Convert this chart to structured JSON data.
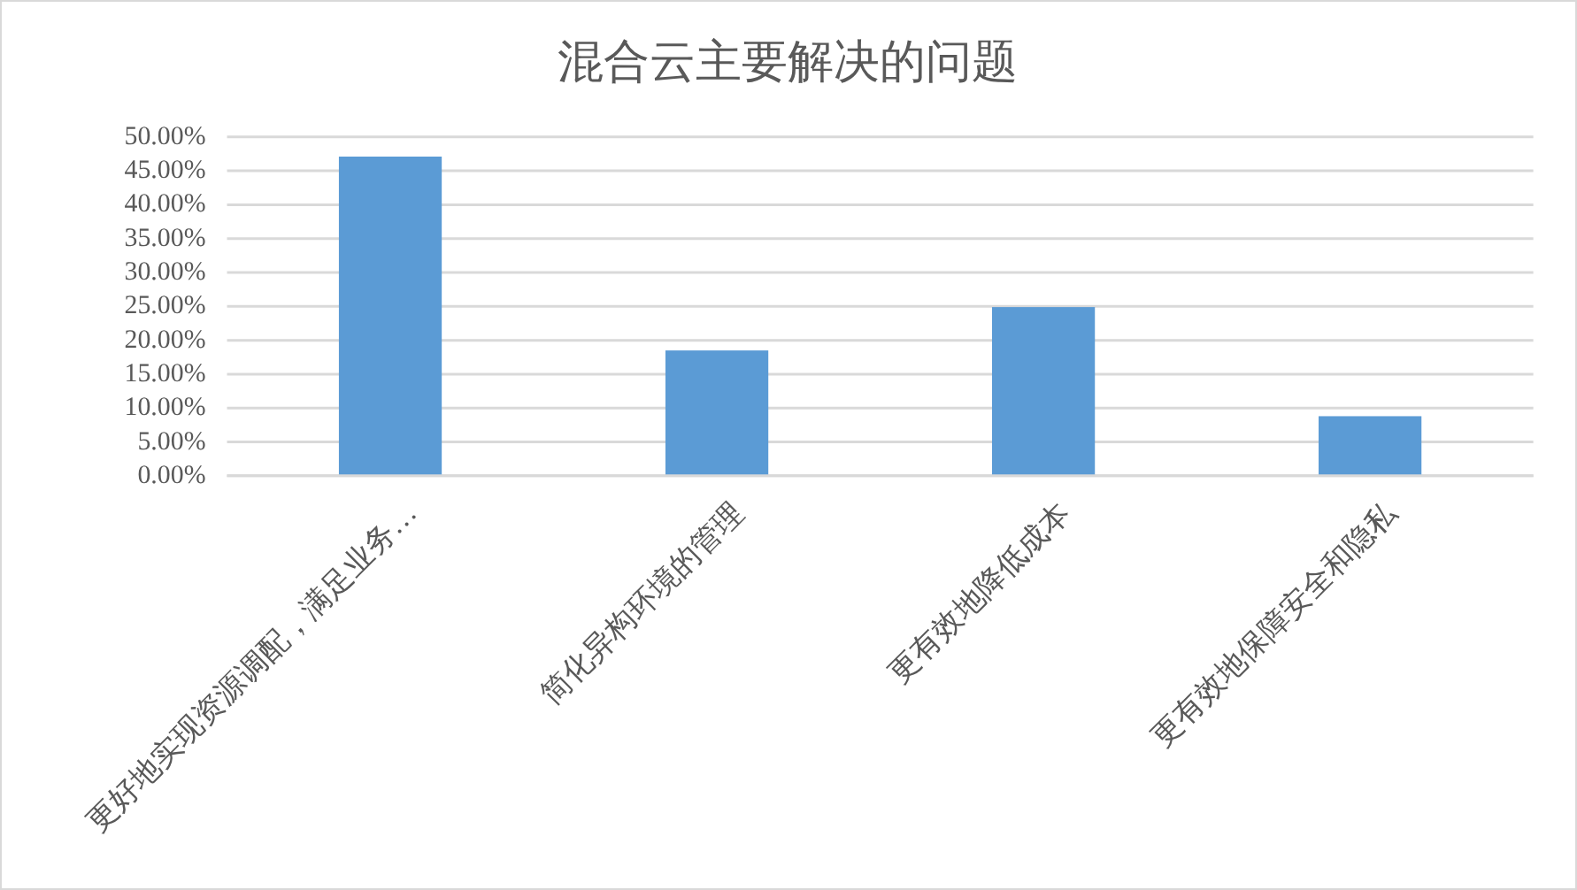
{
  "chart_data": {
    "type": "bar",
    "title": "混合云主要解决的问题",
    "categories": [
      "更好地实现资源调配，满足业务…",
      "简化异构环境的管理",
      "更有效地降低成本",
      "更有效地保障安全和隐私"
    ],
    "values": [
      47.1,
      18.5,
      24.9,
      8.8
    ],
    "color": "#5b9bd5",
    "ylim": [
      0,
      50
    ],
    "yticks": [
      {
        "value": 0,
        "label": "0.00%"
      },
      {
        "value": 5,
        "label": "5.00%"
      },
      {
        "value": 10,
        "label": "10.00%"
      },
      {
        "value": 15,
        "label": "15.00%"
      },
      {
        "value": 20,
        "label": "20.00%"
      },
      {
        "value": 25,
        "label": "25.00%"
      },
      {
        "value": 30,
        "label": "30.00%"
      },
      {
        "value": 35,
        "label": "35.00%"
      },
      {
        "value": 40,
        "label": "40.00%"
      },
      {
        "value": 45,
        "label": "45.00%"
      },
      {
        "value": 50,
        "label": "50.00%"
      }
    ],
    "grid": "y"
  }
}
